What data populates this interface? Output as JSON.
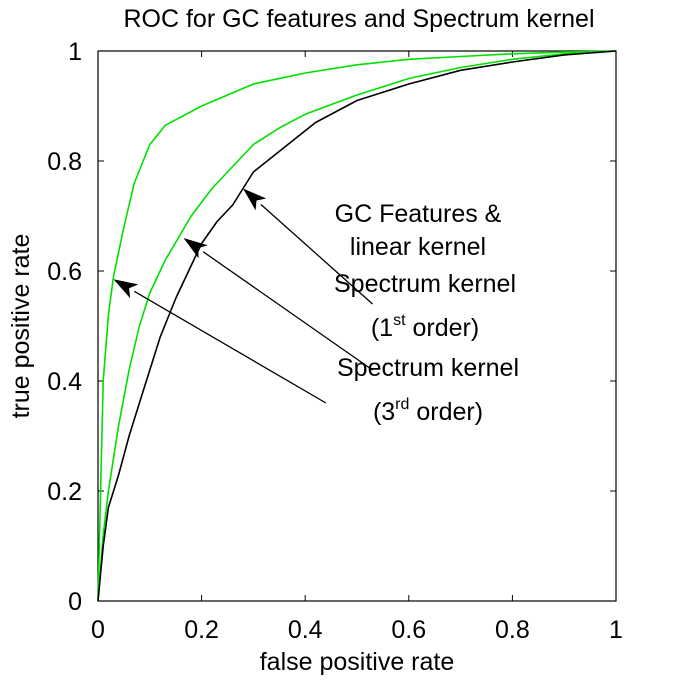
{
  "chart_data": {
    "type": "line",
    "title": "ROC for GC features and Spectrum kernel",
    "xlabel": "false positive rate",
    "ylabel": "true positive rate",
    "xlim": [
      0,
      1
    ],
    "ylim": [
      0,
      1
    ],
    "xticks": [
      "0",
      "0.2",
      "0.4",
      "0.6",
      "0.8",
      "1"
    ],
    "yticks": [
      "0",
      "0.2",
      "0.4",
      "0.6",
      "0.8",
      "1"
    ],
    "grid": false,
    "series": [
      {
        "color": "#00e000",
        "x": [
          0,
          0.005,
          0.01,
          0.02,
          0.03,
          0.05,
          0.07,
          0.1,
          0.13,
          0.17,
          0.2,
          0.25,
          0.3,
          0.4,
          0.5,
          0.6,
          0.7,
          0.8,
          0.9,
          1.0
        ],
        "y": [
          0,
          0.2,
          0.4,
          0.52,
          0.59,
          0.68,
          0.76,
          0.83,
          0.865,
          0.885,
          0.9,
          0.92,
          0.94,
          0.96,
          0.975,
          0.985,
          0.99,
          0.995,
          0.998,
          1.0
        ]
      },
      {
        "color": "#00e000",
        "x": [
          0,
          0.01,
          0.02,
          0.04,
          0.06,
          0.08,
          0.1,
          0.13,
          0.155,
          0.18,
          0.22,
          0.26,
          0.3,
          0.35,
          0.4,
          0.5,
          0.6,
          0.7,
          0.8,
          0.9,
          1.0
        ],
        "y": [
          0,
          0.12,
          0.2,
          0.32,
          0.42,
          0.5,
          0.56,
          0.62,
          0.66,
          0.7,
          0.75,
          0.79,
          0.83,
          0.86,
          0.885,
          0.92,
          0.95,
          0.97,
          0.985,
          0.995,
          1.0
        ]
      },
      {
        "color": "#000000",
        "x": [
          0,
          0.01,
          0.02,
          0.04,
          0.06,
          0.08,
          0.1,
          0.12,
          0.15,
          0.18,
          0.2,
          0.23,
          0.26,
          0.28,
          0.3,
          0.34,
          0.38,
          0.42,
          0.5,
          0.6,
          0.7,
          0.8,
          0.9,
          1.0
        ],
        "y": [
          0,
          0.1,
          0.17,
          0.23,
          0.3,
          0.36,
          0.42,
          0.48,
          0.55,
          0.61,
          0.65,
          0.69,
          0.72,
          0.75,
          0.78,
          0.81,
          0.84,
          0.87,
          0.91,
          0.94,
          0.965,
          0.98,
          0.993,
          1.0
        ]
      }
    ],
    "annotations": [
      {
        "line1": "GC Features &",
        "line2": "linear kernel",
        "arrow_to": [
          0.28,
          0.75
        ],
        "arrow_from": [
          0.53,
          0.54
        ]
      },
      {
        "line1": "Spectrum kernel",
        "line2_pre": "(1",
        "line2_sup": "st",
        "line2_post": " order)",
        "arrow_to": [
          0.165,
          0.66
        ],
        "arrow_from": [
          0.53,
          0.42
        ]
      },
      {
        "line1": "Spectrum kernel",
        "line2_pre": "(3",
        "line2_sup": "rd",
        "line2_post": " order)",
        "arrow_to": [
          0.03,
          0.585
        ],
        "arrow_from": [
          0.44,
          0.36
        ]
      }
    ]
  }
}
